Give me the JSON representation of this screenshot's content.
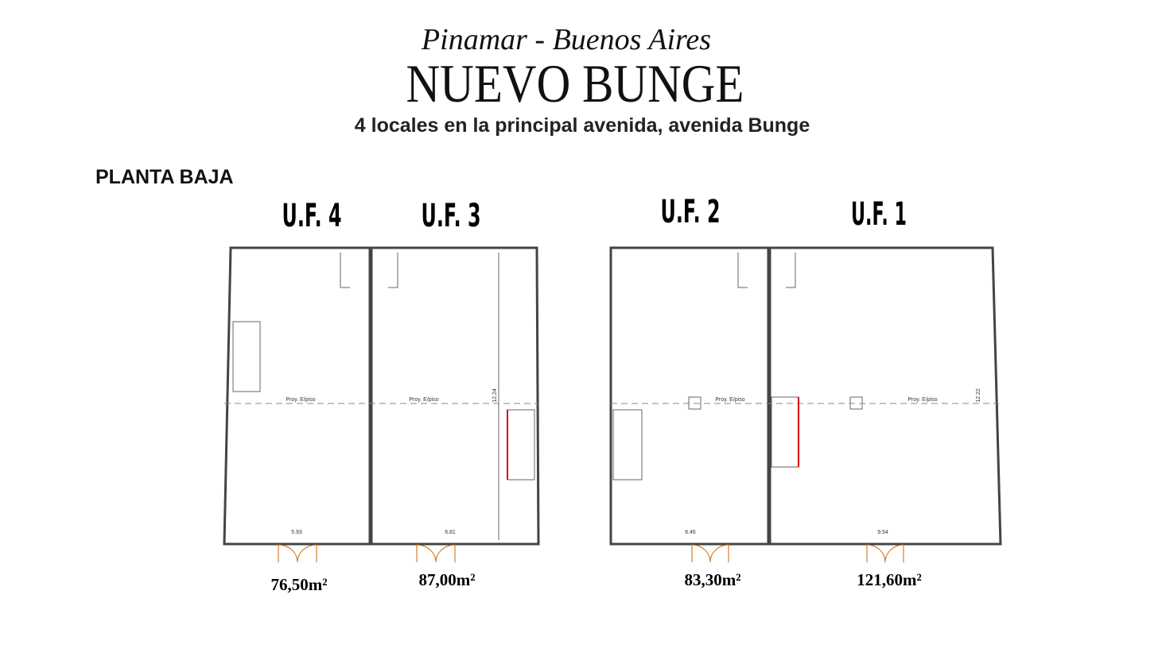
{
  "header": {
    "location": "Pinamar - Buenos Aires",
    "title": "NUEVO BUNGE",
    "subtitle": "4 locales en la principal avenida, avenida Bunge"
  },
  "floor": "PLANTA BAJA",
  "units": [
    {
      "label": "U.F. 4",
      "area": "76,50m²",
      "width": "5.93",
      "note": "Proy. E/piso"
    },
    {
      "label": "U.F. 3",
      "area": "87,00m²",
      "width": "6.81",
      "note": "Proy. E/piso",
      "depth": "12.24"
    },
    {
      "label": "U.F. 2",
      "area": "83,30m²",
      "width": "6.46",
      "note": "Proy. E/piso"
    },
    {
      "label": "U.F. 1",
      "area": "121,60m²",
      "width": "9.54",
      "note": "Proy. E/piso",
      "depth": "12.22"
    }
  ]
}
